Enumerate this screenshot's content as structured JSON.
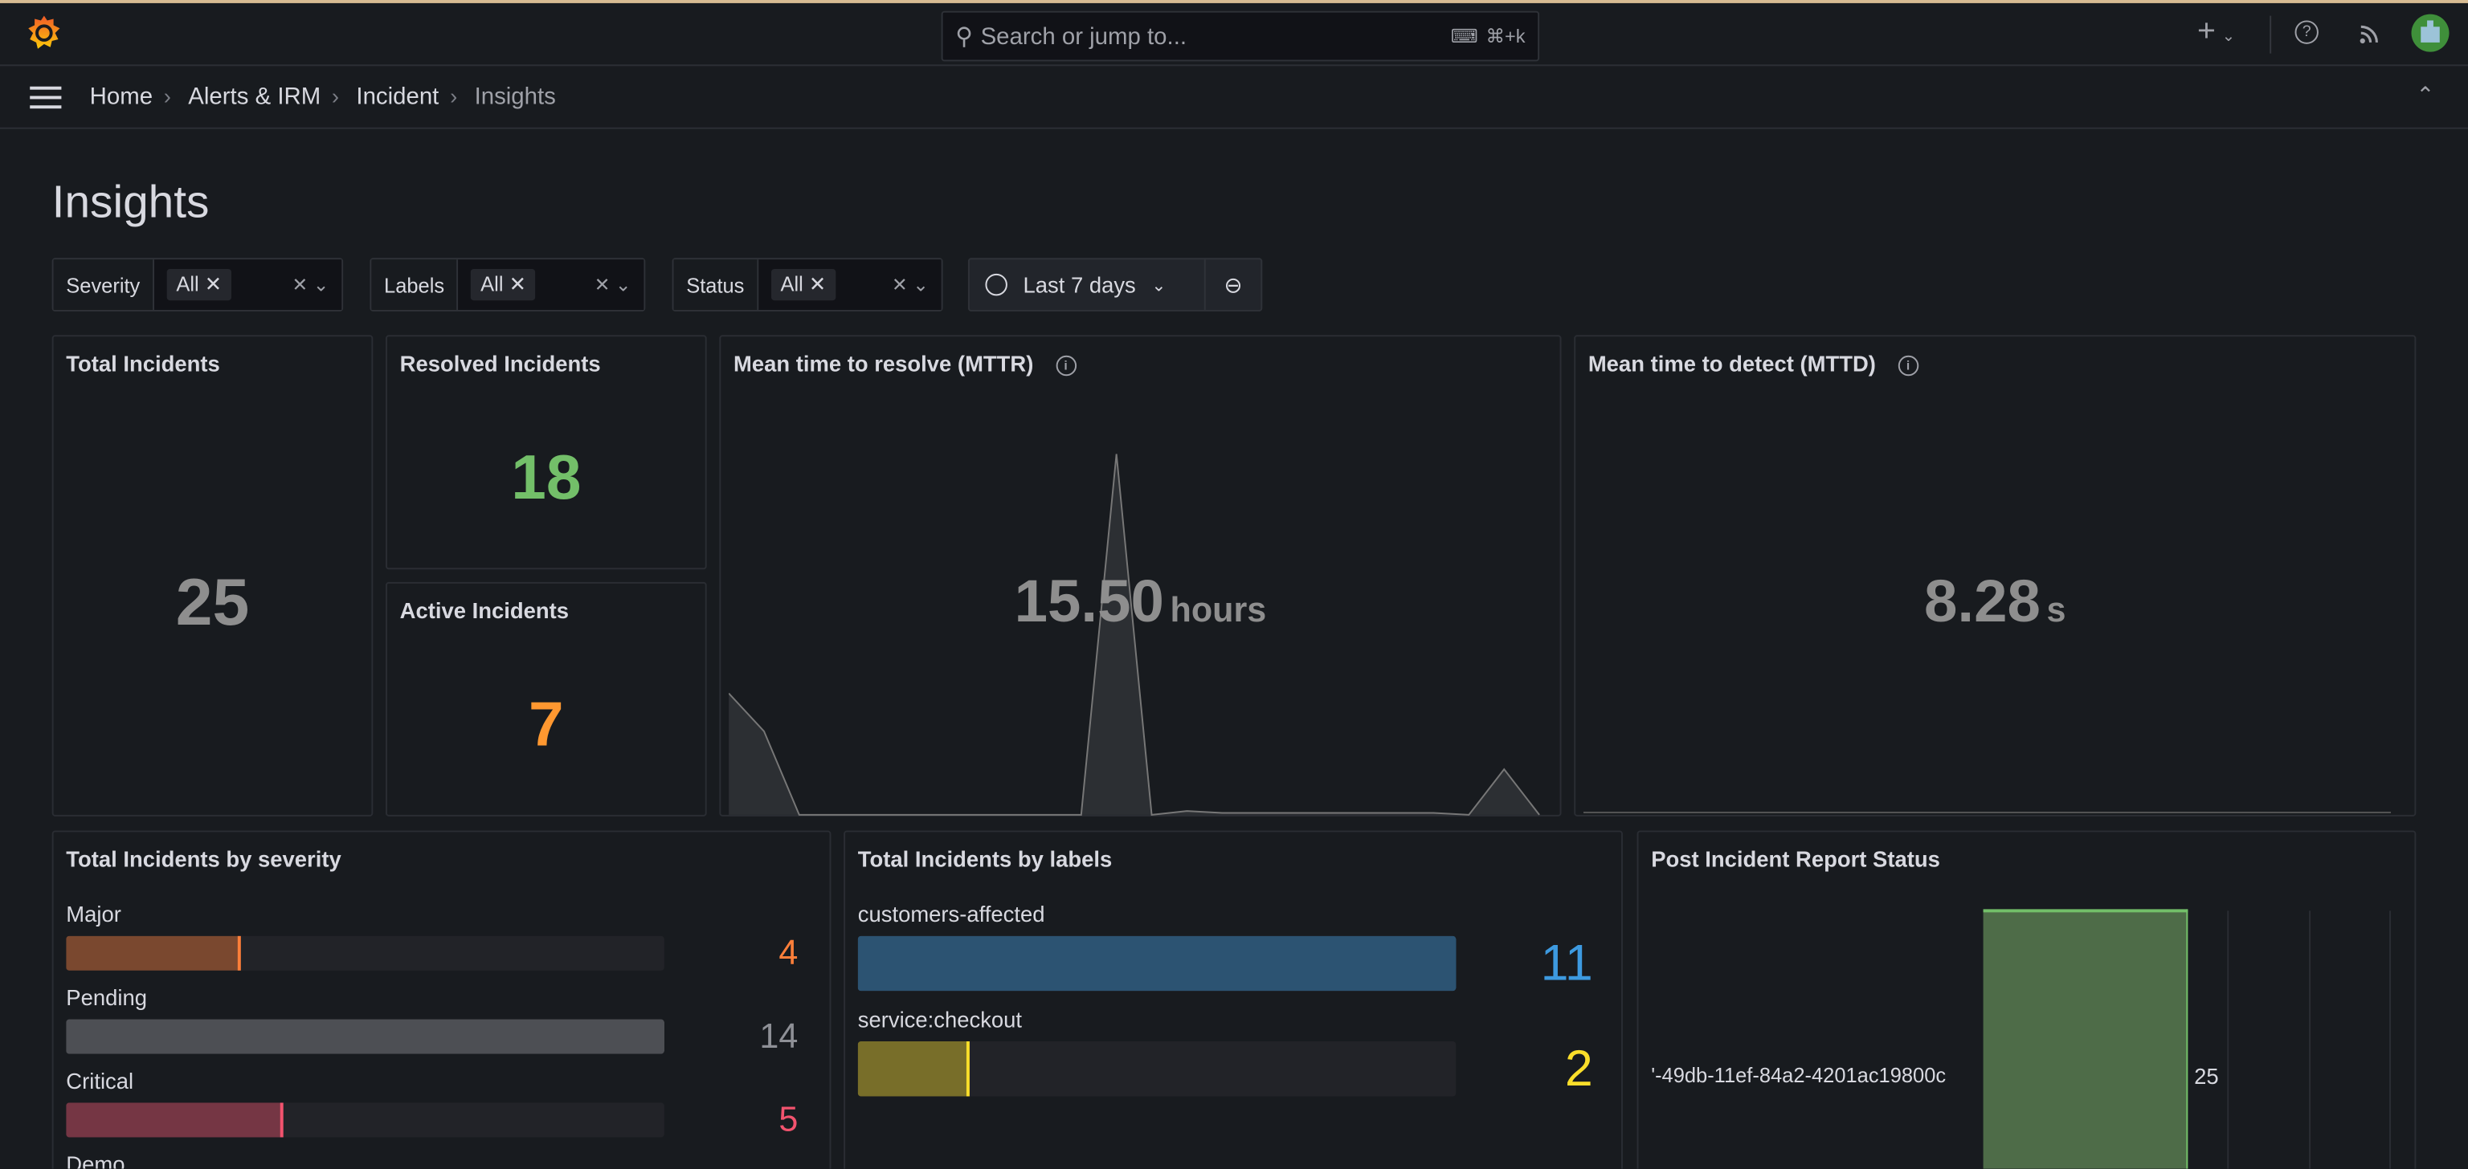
{
  "topbar": {
    "search_placeholder": "Search or jump to...",
    "search_shortcut": "⌘+k",
    "add_label": "+",
    "icons": [
      "grafana-logo-icon",
      "search-icon",
      "keyboard-icon",
      "plus-icon",
      "help-icon",
      "rss-icon",
      "avatar"
    ]
  },
  "breadcrumb": [
    "Home",
    "Alerts & IRM",
    "Incident",
    "Insights"
  ],
  "page_title": "Insights",
  "filters": [
    {
      "label": "Severity",
      "value": "All"
    },
    {
      "label": "Labels",
      "value": "All"
    },
    {
      "label": "Status",
      "value": "All"
    }
  ],
  "time_range": "Last 7 days",
  "stats": {
    "total": {
      "title": "Total Incidents",
      "value": "25",
      "color": "#8e8e8e"
    },
    "resolved": {
      "title": "Resolved Incidents",
      "value": "18",
      "color": "#73bf69"
    },
    "active": {
      "title": "Active Incidents",
      "value": "7",
      "color": "#ff9830"
    },
    "mttr": {
      "title": "Mean time to resolve (MTTR)",
      "value": "15.50",
      "unit": "hours",
      "sparkline": [
        3.2,
        2.2,
        0,
        0,
        0,
        0,
        0,
        0,
        0,
        0,
        0,
        9.5,
        0,
        0.1,
        0.05,
        0.05,
        0.05,
        0.05,
        0.05,
        0.05,
        0.05,
        0,
        1.2,
        0
      ]
    },
    "mttd": {
      "title": "Mean time to detect (MTTD)",
      "value": "8.28",
      "unit": "s"
    }
  },
  "severity": {
    "title": "Total Incidents by severity",
    "max": 14,
    "items": [
      {
        "label": "Major",
        "value": 4,
        "color": "#ff7f3a"
      },
      {
        "label": "Pending",
        "value": 14,
        "color": "#8e9096"
      },
      {
        "label": "Critical",
        "value": 5,
        "color": "#f2536e"
      },
      {
        "label": "Demo",
        "value": null,
        "color": "#8e9096"
      }
    ]
  },
  "labels": {
    "title": "Total Incidents by labels",
    "max": 11,
    "items": [
      {
        "label": "customers-affected",
        "value": 11,
        "color": "#3d9ae0"
      },
      {
        "label": "service:checkout",
        "value": 2,
        "color": "#fade2a"
      }
    ]
  },
  "post_incident": {
    "title": "Post Incident Report Status",
    "category": "'-49db-11ef-84a2-4201ac19800c",
    "value": 25,
    "color": "#73bf69"
  }
}
